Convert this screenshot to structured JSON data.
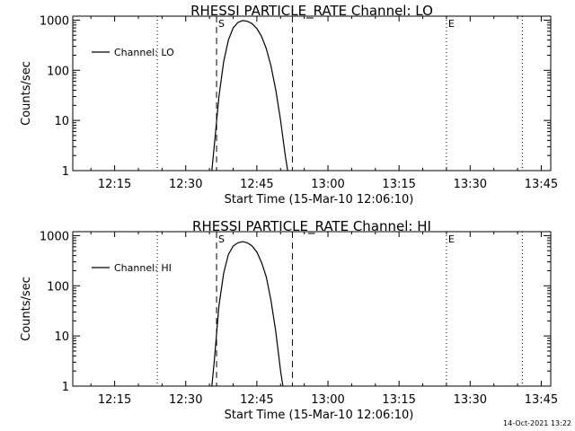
{
  "chart_data": [
    {
      "type": "line",
      "title": "RHESSI PARTICLE_RATE Channel: LO",
      "xlabel": "Start Time (15-Mar-10 12:06:10)",
      "ylabel": "Counts/sec",
      "yscale": "log",
      "ylim": [
        1,
        1200
      ],
      "xlim": [
        "12:06:10",
        "13:47:00"
      ],
      "xticks": [
        "12:15",
        "12:30",
        "12:45",
        "13:00",
        "13:15",
        "13:30",
        "13:45"
      ],
      "yticks": [
        "1",
        "10",
        "100",
        "1000"
      ],
      "legend": {
        "label": "Channel: LO",
        "position": "top-left"
      },
      "series": [
        {
          "name": "Channel: LO",
          "x": [
            "12:35:30",
            "12:36:00",
            "12:37:00",
            "12:38:00",
            "12:39:00",
            "12:40:00",
            "12:41:00",
            "12:42:00",
            "12:43:00",
            "12:44:00",
            "12:45:00",
            "12:46:00",
            "12:47:00",
            "12:48:00",
            "12:49:00",
            "12:50:00",
            "12:51:00",
            "12:51:30"
          ],
          "y": [
            1,
            3,
            30,
            150,
            400,
            700,
            900,
            980,
            950,
            850,
            680,
            470,
            270,
            120,
            40,
            10,
            2,
            1
          ]
        }
      ],
      "vlines": [
        {
          "x": "12:24:00",
          "style": "dotted"
        },
        {
          "x": "12:36:30",
          "style": "dashed",
          "label": "S"
        },
        {
          "x": "12:52:30",
          "style": "dashed"
        },
        {
          "x": "13:25:00",
          "style": "dotted",
          "label": "E"
        },
        {
          "x": "13:41:00",
          "style": "dotted"
        }
      ]
    },
    {
      "type": "line",
      "title": "RHESSI PARTICLE_RATE Channel: HI",
      "xlabel": "Start Time (15-Mar-10 12:06:10)",
      "ylabel": "Counts/sec",
      "yscale": "log",
      "ylim": [
        1,
        1200
      ],
      "xlim": [
        "12:06:10",
        "13:47:00"
      ],
      "xticks": [
        "12:15",
        "12:30",
        "12:45",
        "13:00",
        "13:15",
        "13:30",
        "13:45"
      ],
      "yticks": [
        "1",
        "10",
        "100",
        "1000"
      ],
      "legend": {
        "label": "Channel: HI",
        "position": "top-left"
      },
      "series": [
        {
          "name": "Channel: HI",
          "x": [
            "12:35:30",
            "12:36:00",
            "12:37:00",
            "12:38:00",
            "12:39:00",
            "12:40:00",
            "12:41:00",
            "12:42:00",
            "12:43:00",
            "12:44:00",
            "12:45:00",
            "12:46:00",
            "12:47:00",
            "12:48:00",
            "12:49:00",
            "12:50:00",
            "12:50:30"
          ],
          "y": [
            1,
            3,
            40,
            180,
            420,
            620,
            720,
            760,
            720,
            620,
            470,
            290,
            150,
            50,
            12,
            2,
            1
          ]
        }
      ],
      "vlines": [
        {
          "x": "12:24:00",
          "style": "dotted"
        },
        {
          "x": "12:36:30",
          "style": "dashed",
          "label": "S"
        },
        {
          "x": "12:52:30",
          "style": "dashed"
        },
        {
          "x": "13:25:00",
          "style": "dotted",
          "label": "E"
        },
        {
          "x": "13:41:00",
          "style": "dotted"
        }
      ]
    }
  ],
  "timestamp": "14-Oct-2021 13:22"
}
